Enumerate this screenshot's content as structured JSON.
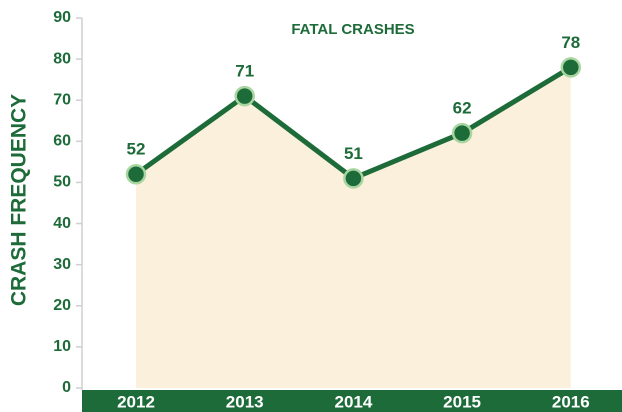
{
  "chart_data": {
    "type": "line",
    "title": "FATAL CRASHES",
    "y_label": "CRASH FREQUENCY",
    "categories": [
      "2012",
      "2013",
      "2014",
      "2015",
      "2016"
    ],
    "series": [
      {
        "name": "Fatal crashes",
        "color": "#1e6b3a",
        "values": [
          52,
          71,
          51,
          62,
          78
        ]
      }
    ],
    "area_color": "#fbf0dc",
    "ylim": [
      0,
      90
    ],
    "yticks": [
      0,
      10,
      20,
      30,
      40,
      50,
      60,
      70,
      80,
      90
    ]
  }
}
